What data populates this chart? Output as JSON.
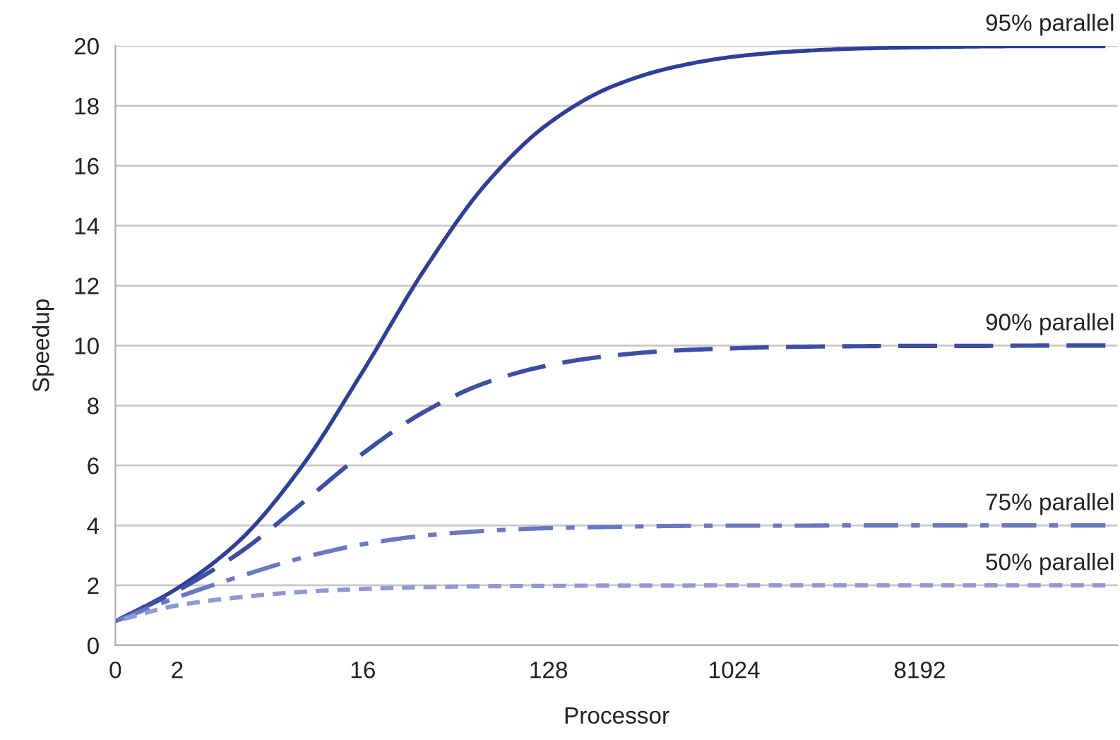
{
  "chart_data": {
    "type": "line",
    "xlabel": "Processor",
    "ylabel": "Speedup",
    "categories": [
      "0",
      "2",
      null,
      null,
      "16",
      null,
      null,
      "128",
      null,
      null,
      "1024",
      null,
      null,
      "8192",
      null,
      null,
      null
    ],
    "series": [
      {
        "name": "95% parallel",
        "color": "#2e3f9a",
        "line_style": "solid",
        "values": [
          0.8,
          1.9,
          3.48,
          5.93,
          9.14,
          12.55,
          15.42,
          17.41,
          18.62,
          19.28,
          19.64,
          19.82,
          19.91,
          19.95,
          19.98,
          19.99,
          19.99
        ]
      },
      {
        "name": "90% parallel",
        "color": "#3d4fa5",
        "line_style": "dashed",
        "values": [
          0.8,
          1.82,
          3.08,
          4.71,
          6.4,
          7.8,
          8.77,
          9.34,
          9.66,
          9.83,
          9.91,
          9.96,
          9.98,
          9.99,
          9.99,
          10.0,
          10.0
        ]
      },
      {
        "name": "75% parallel",
        "color": "#6a78c0",
        "line_style": "dashdot",
        "values": [
          0.8,
          1.6,
          2.29,
          2.91,
          3.37,
          3.66,
          3.82,
          3.91,
          3.95,
          3.98,
          3.99,
          3.99,
          4.0,
          4.0,
          4.0,
          4.0,
          4.0
        ]
      },
      {
        "name": "50% parallel",
        "color": "#8f99d3",
        "line_style": "dotted",
        "values": [
          0.8,
          1.33,
          1.6,
          1.78,
          1.88,
          1.94,
          1.97,
          1.98,
          1.99,
          1.99,
          2.0,
          2.0,
          2.0,
          2.0,
          2.0,
          2.0,
          2.0
        ]
      }
    ],
    "ylim": [
      0,
      20
    ],
    "yticks": [
      0,
      2,
      4,
      6,
      8,
      10,
      12,
      14,
      16,
      18,
      20
    ],
    "grid": "y",
    "legend": false
  }
}
